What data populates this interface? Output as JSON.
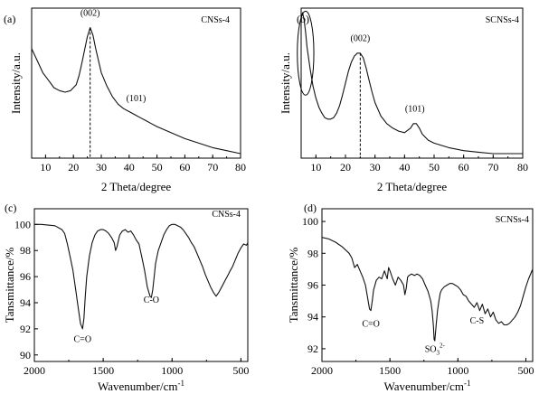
{
  "chart_data": [
    {
      "id": "a",
      "type": "line",
      "panel_label": "(a)",
      "sample_label": "CNSs-4",
      "xlabel": "2 Theta/degree",
      "ylabel": "Intensity/a.u.",
      "xlim": [
        5,
        80
      ],
      "ylim": [
        0,
        1
      ],
      "x_axis_reversed": false,
      "y_ticks_shown": false,
      "x_ticks": [
        10,
        20,
        30,
        40,
        50,
        60,
        70,
        80
      ],
      "y_ticks": [],
      "peak_labels": [
        {
          "text": "(002)",
          "x": 26,
          "y": 0.95
        },
        {
          "text": "(101)",
          "x": 42.5,
          "y": 0.38
        }
      ],
      "dashed_markers": [
        {
          "x": 26,
          "y_top": 0.87
        }
      ],
      "series": [
        {
          "x": [
            5,
            7,
            9,
            11,
            13,
            15,
            17,
            19,
            21,
            22,
            23,
            24,
            25,
            26,
            27,
            28,
            29,
            30,
            32,
            34,
            36,
            38,
            40,
            42,
            44,
            46,
            48,
            50,
            55,
            60,
            65,
            70,
            75,
            80
          ],
          "y": [
            0.73,
            0.65,
            0.57,
            0.52,
            0.47,
            0.45,
            0.44,
            0.45,
            0.49,
            0.55,
            0.63,
            0.72,
            0.81,
            0.87,
            0.82,
            0.73,
            0.65,
            0.57,
            0.48,
            0.41,
            0.36,
            0.33,
            0.31,
            0.29,
            0.27,
            0.25,
            0.23,
            0.21,
            0.17,
            0.13,
            0.1,
            0.07,
            0.05,
            0.03
          ]
        }
      ]
    },
    {
      "id": "b",
      "type": "line",
      "panel_label": "(b)",
      "sample_label": "SCNSs-4",
      "xlabel": "2 Theta/degree",
      "ylabel": "Intensity/a.u.",
      "xlim": [
        5,
        80
      ],
      "ylim": [
        0,
        1
      ],
      "x_axis_reversed": false,
      "y_ticks_shown": false,
      "x_ticks": [
        10,
        20,
        30,
        40,
        50,
        60,
        70,
        80
      ],
      "y_ticks": [],
      "peak_labels": [
        {
          "text": "(002)",
          "x": 25,
          "y": 0.78
        },
        {
          "text": "(101)",
          "x": 43.5,
          "y": 0.31
        }
      ],
      "dashed_markers": [
        {
          "x": 25,
          "y_top": 0.7
        }
      ],
      "highlight_ellipse": {
        "cx": 6.5,
        "cy": 0.7,
        "rx": 2.8,
        "ry": 0.28
      },
      "series": [
        {
          "x": [
            5,
            5.5,
            6,
            6.5,
            7,
            8,
            9,
            10,
            11,
            12,
            13,
            14,
            15,
            16,
            17,
            18,
            19,
            20,
            21,
            22,
            23,
            24,
            25,
            26,
            27,
            28,
            29,
            30,
            32,
            34,
            36,
            38,
            40,
            42,
            43,
            44,
            45,
            46,
            48,
            50,
            55,
            60,
            65,
            70,
            75,
            80
          ],
          "y": [
            0.93,
            0.97,
            0.92,
            0.84,
            0.74,
            0.6,
            0.48,
            0.4,
            0.34,
            0.3,
            0.27,
            0.26,
            0.26,
            0.27,
            0.3,
            0.35,
            0.42,
            0.5,
            0.58,
            0.64,
            0.68,
            0.7,
            0.7,
            0.67,
            0.6,
            0.52,
            0.44,
            0.37,
            0.28,
            0.23,
            0.2,
            0.18,
            0.17,
            0.2,
            0.23,
            0.23,
            0.2,
            0.16,
            0.12,
            0.1,
            0.07,
            0.05,
            0.04,
            0.03,
            0.03,
            0.03
          ]
        }
      ]
    },
    {
      "id": "c",
      "type": "line",
      "panel_label": "(c)",
      "sample_label": "CNSs-4",
      "xlabel": "Wavenumber/cm",
      "xlabel_sup": "-1",
      "ylabel": "Tansmittance/%",
      "xlim": [
        2000,
        450
      ],
      "ylim": [
        89.5,
        101.2
      ],
      "x_axis_reversed": true,
      "y_ticks_shown": true,
      "x_ticks": [
        2000,
        1500,
        1000,
        500
      ],
      "y_ticks": [
        90,
        92,
        94,
        96,
        98,
        100
      ],
      "annotations": [
        {
          "text": "C=O",
          "x": 1650,
          "y": 91.0
        },
        {
          "text": "C-O",
          "x": 1150,
          "y": 94.0
        }
      ],
      "series": [
        {
          "x": [
            2000,
            1950,
            1900,
            1850,
            1800,
            1780,
            1760,
            1740,
            1720,
            1700,
            1680,
            1665,
            1650,
            1640,
            1630,
            1620,
            1600,
            1580,
            1560,
            1540,
            1520,
            1500,
            1480,
            1460,
            1440,
            1420,
            1410,
            1400,
            1380,
            1360,
            1340,
            1320,
            1300,
            1280,
            1260,
            1240,
            1220,
            1200,
            1180,
            1160,
            1150,
            1140,
            1130,
            1120,
            1110,
            1100,
            1080,
            1060,
            1040,
            1020,
            1000,
            980,
            960,
            940,
            920,
            900,
            880,
            860,
            840,
            820,
            800,
            780,
            760,
            740,
            720,
            700,
            680,
            660,
            640,
            620,
            600,
            580,
            560,
            540,
            520,
            500,
            480,
            460,
            450
          ],
          "y": [
            100.0,
            100.0,
            99.95,
            99.9,
            99.6,
            99.3,
            98.5,
            97.5,
            96.5,
            95.0,
            93.5,
            92.4,
            92.0,
            92.8,
            94.5,
            96.0,
            97.6,
            98.6,
            99.2,
            99.5,
            99.6,
            99.6,
            99.5,
            99.3,
            99.0,
            98.6,
            98.0,
            98.3,
            99.2,
            99.5,
            99.6,
            99.4,
            99.5,
            99.2,
            98.8,
            98.5,
            97.5,
            96.5,
            95.2,
            94.5,
            94.4,
            95.0,
            96.0,
            97.0,
            97.5,
            98.0,
            98.6,
            99.2,
            99.6,
            99.9,
            100.0,
            100.0,
            99.9,
            99.8,
            99.6,
            99.3,
            99.0,
            98.6,
            98.3,
            97.8,
            97.3,
            96.8,
            96.2,
            95.7,
            95.2,
            94.8,
            94.5,
            94.8,
            95.2,
            95.6,
            96.0,
            96.4,
            96.8,
            97.3,
            97.8,
            98.2,
            98.5,
            98.4,
            98.6
          ]
        }
      ]
    },
    {
      "id": "d",
      "type": "line",
      "panel_label": "(d)",
      "sample_label": "SCNSs-4",
      "xlabel": "Wavenumber/cm",
      "xlabel_sup": "-1",
      "ylabel": "Tansmittance/%",
      "xlim": [
        2000,
        450
      ],
      "ylim": [
        91.2,
        100.8
      ],
      "x_axis_reversed": true,
      "y_ticks_shown": true,
      "x_ticks": [
        2000,
        1500,
        1000,
        500
      ],
      "y_ticks": [
        92,
        94,
        96,
        98,
        100
      ],
      "annotations": [
        {
          "text": "C=O",
          "x": 1640,
          "y": 93.4
        },
        {
          "text": "SO",
          "sub": "3",
          "sup": "2-",
          "x": 1170,
          "y": 91.8
        },
        {
          "text": "C-S",
          "x": 860,
          "y": 93.6
        }
      ],
      "series": [
        {
          "x": [
            2000,
            1950,
            1900,
            1850,
            1800,
            1780,
            1760,
            1740,
            1720,
            1700,
            1680,
            1660,
            1650,
            1640,
            1630,
            1620,
            1600,
            1580,
            1560,
            1540,
            1520,
            1510,
            1500,
            1480,
            1460,
            1440,
            1420,
            1400,
            1390,
            1380,
            1370,
            1360,
            1340,
            1320,
            1300,
            1280,
            1260,
            1240,
            1220,
            1200,
            1190,
            1180,
            1175,
            1170,
            1160,
            1150,
            1140,
            1130,
            1120,
            1100,
            1080,
            1060,
            1040,
            1020,
            1000,
            980,
            960,
            940,
            920,
            900,
            880,
            860,
            840,
            820,
            800,
            780,
            760,
            740,
            720,
            700,
            680,
            660,
            640,
            620,
            600,
            580,
            560,
            540,
            520,
            500,
            480,
            460,
            450
          ],
          "y": [
            99.0,
            98.9,
            98.7,
            98.4,
            98.0,
            97.7,
            97.1,
            97.3,
            96.9,
            96.5,
            96.0,
            95.0,
            94.5,
            94.4,
            95.0,
            95.7,
            96.3,
            96.5,
            96.4,
            96.9,
            96.4,
            97.1,
            96.9,
            96.4,
            96.0,
            96.5,
            96.3,
            96.0,
            95.4,
            95.8,
            96.5,
            96.6,
            96.7,
            96.6,
            96.7,
            96.6,
            96.4,
            96.0,
            95.6,
            95.0,
            94.4,
            93.4,
            92.6,
            92.5,
            93.5,
            94.4,
            95.0,
            95.5,
            95.7,
            95.9,
            96.0,
            96.1,
            96.1,
            96.0,
            95.9,
            95.7,
            95.4,
            95.3,
            95.0,
            94.8,
            94.6,
            94.9,
            94.4,
            94.8,
            94.2,
            94.5,
            94.0,
            94.3,
            93.8,
            93.6,
            93.7,
            93.5,
            93.5,
            93.6,
            93.8,
            94.0,
            94.3,
            94.7,
            95.3,
            95.9,
            96.4,
            96.8,
            97.0
          ]
        }
      ]
    }
  ]
}
